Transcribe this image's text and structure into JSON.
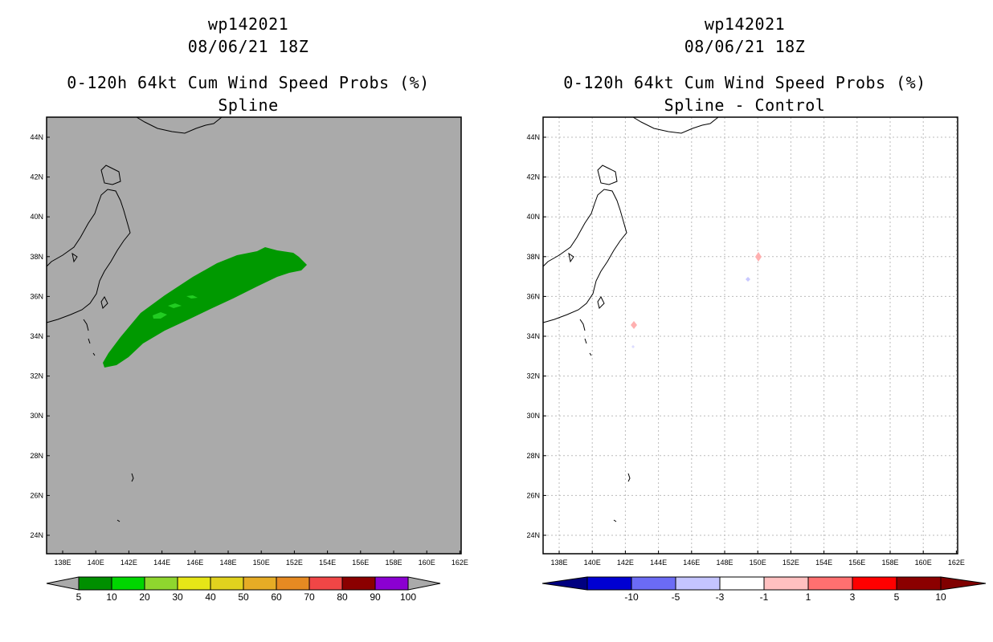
{
  "colors": {
    "land_fill_left": "#aaaaaa",
    "prob_5": "#009900",
    "prob_10": "#00dd00",
    "spline_pos_1": "#ffc0c0",
    "spline_pos_3": "#ff8080",
    "spline_neg": "#c8c8ff"
  },
  "left": {
    "title_line1": "wp142021",
    "title_line2": "08/06/21 18Z",
    "title_line3": "0-120h 64kt Cum Wind Speed Probs (%)",
    "title_line4": "Spline",
    "colorbar": {
      "labels": [
        "5",
        "10",
        "20",
        "30",
        "40",
        "50",
        "60",
        "70",
        "80",
        "90",
        "100"
      ],
      "colors": [
        "#008f00",
        "#00d600",
        "#8fd62e",
        "#e6e617",
        "#e1d21e",
        "#e6ac25",
        "#e68a22",
        "#f04646",
        "#8b0000",
        "#8b00d2"
      ]
    }
  },
  "right": {
    "title_line1": "wp142021",
    "title_line2": "08/06/21 18Z",
    "title_line3": "0-120h 64kt Cum Wind Speed Probs (%)",
    "title_line4": "Spline - Control",
    "colorbar": {
      "labels": [
        "-10",
        "-5",
        "-3",
        "-1",
        "1",
        "3",
        "5",
        "10"
      ],
      "colors": [
        "#0000d2",
        "#6b6bf5",
        "#c4c4ff",
        "#ffffff",
        "#ffc0c0",
        "#ff7070",
        "#ff0000",
        "#8b0000"
      ],
      "end_low": "#000080",
      "end_high": "#800000"
    }
  },
  "axes": {
    "lat_labels": [
      "44N",
      "42N",
      "40N",
      "38N",
      "36N",
      "34N",
      "32N",
      "30N",
      "28N",
      "26N",
      "24N"
    ],
    "lon_labels": [
      "138E",
      "140E",
      "142E",
      "144E",
      "146E",
      "148E",
      "150E",
      "152E",
      "154E",
      "156E",
      "158E",
      "160E",
      "162E"
    ]
  }
}
